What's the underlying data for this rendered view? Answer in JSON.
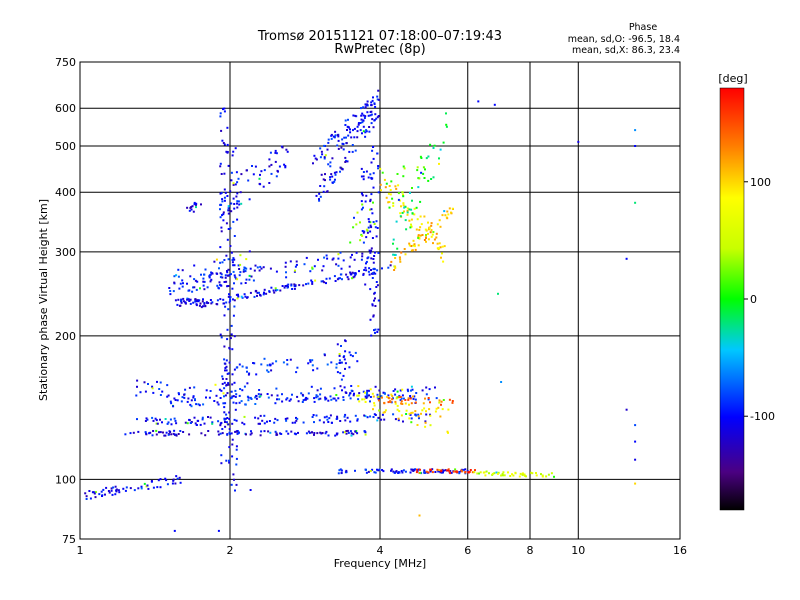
{
  "chart_data": {
    "type": "scatter",
    "title": "Tromsø 20151121 07:18:00–07:19:43",
    "subtitle": "RwPretec (8p)",
    "xlabel": "Frequency [MHz]",
    "ylabel": "Stationary phase Virtual Height [km]",
    "x_scale": "log",
    "y_scale": "log",
    "xlim": [
      1,
      16
    ],
    "ylim": [
      75,
      750
    ],
    "x_ticks": [
      1,
      2,
      4,
      6,
      8,
      10,
      16
    ],
    "x_tick_labels": [
      "1",
      "2",
      "4",
      "6",
      "8",
      "10",
      "16"
    ],
    "x_grid": [
      2,
      4,
      6,
      8,
      10
    ],
    "y_ticks": [
      75,
      100,
      200,
      300,
      400,
      500,
      600,
      750
    ],
    "y_tick_labels": [
      "75",
      "100",
      "200",
      "300",
      "400",
      "500",
      "600",
      "750"
    ],
    "y_grid": [
      100,
      200,
      300,
      400,
      500,
      600
    ],
    "grid": true,
    "colorbar": {
      "label": "[deg]",
      "range": [
        -180,
        180
      ],
      "ticks": [
        100,
        0,
        -100
      ],
      "tick_labels": [
        "100",
        "0",
        "-100"
      ]
    },
    "stats": {
      "heading": "Phase",
      "o_line": "mean, sd,O: -96.5, 18.4",
      "x_line": "mean, sd,X: 86.3, 23.4"
    },
    "series": [
      {
        "traces": [
          {
            "f": [
              1.55,
              1.8
            ],
            "h": [
              236,
              234
            ],
            "p": -110,
            "n": 45,
            "jh": 0.02
          },
          {
            "f": [
              1.8,
              4.2
            ],
            "h": [
              234,
              278
            ],
            "p": -105,
            "n": 120,
            "jh": 0.015
          },
          {
            "f": [
              4.2,
              5.6
            ],
            "h": [
              278,
              370
            ],
            "p": 110,
            "n": 55,
            "jh": 0.03
          },
          {
            "f": [
              1.5,
              3.9
            ],
            "h": [
              252,
              295
            ],
            "p": -100,
            "n": 110,
            "jh": 0.04
          },
          {
            "f": [
              1.55,
              2.2
            ],
            "h": [
              265,
              285
            ],
            "p": -95,
            "n": 45,
            "jh": 0.06
          },
          {
            "f": [
              3.0,
              4.0
            ],
            "h": [
              400,
              620
            ],
            "p": -105,
            "n": 90,
            "jh": 0.06
          },
          {
            "f": [
              2.9,
              3.8
            ],
            "h": [
              460,
              600
            ],
            "p": -100,
            "n": 60,
            "jh": 0.04
          },
          {
            "f": [
              4.0,
              5.4
            ],
            "h": [
              420,
              300
            ],
            "p": 100,
            "n": 70,
            "jh": 0.07
          },
          {
            "f": [
              3.5,
              5.0
            ],
            "h": [
              330,
              470
            ],
            "p": 20,
            "n": 40,
            "jh": 0.08
          },
          {
            "f": [
              4.2,
              5.5
            ],
            "h": [
              300,
              560
            ],
            "p": -20,
            "n": 40,
            "jh": 0.1
          },
          {
            "f": [
              1.9,
              2.6
            ],
            "h": [
              380,
              470
            ],
            "p": -105,
            "n": 60,
            "jh": 0.08
          },
          {
            "f": [
              1.65,
              1.75
            ],
            "h": [
              365,
              380
            ],
            "p": -110,
            "n": 14,
            "jh": 0.02
          },
          {
            "f": [
              1.3,
              5.0
            ],
            "h": [
              132,
              135
            ],
            "p": -100,
            "n": 130,
            "jh": 0.02
          },
          {
            "f": [
              1.5,
              5.0
            ],
            "h": [
              145,
              152
            ],
            "p": -95,
            "n": 120,
            "jh": 0.025
          },
          {
            "f": [
              1.3,
              5.4
            ],
            "h": [
              155,
              150
            ],
            "p": -100,
            "n": 100,
            "jh": 0.04
          },
          {
            "f": [
              1.2,
              3.8
            ],
            "h": [
              125,
              125
            ],
            "p": -110,
            "n": 110,
            "jh": 0.012
          },
          {
            "f": [
              1.9,
              3.6
            ],
            "h": [
              170,
              178
            ],
            "p": -95,
            "n": 60,
            "jh": 0.04
          },
          {
            "f": [
              3.6,
              5.5
            ],
            "h": [
              150,
              132
            ],
            "p": 95,
            "n": 55,
            "jh": 0.06
          },
          {
            "f": [
              4.0,
              5.6
            ],
            "h": [
              147,
              146
            ],
            "p": 140,
            "n": 35,
            "jh": 0.02
          },
          {
            "f": [
              1.0,
              1.6
            ],
            "h": [
              92,
              100
            ],
            "p": -105,
            "n": 60,
            "jh": 0.02
          },
          {
            "f": [
              3.3,
              6.0
            ],
            "h": [
              104,
              104
            ],
            "p": -100,
            "n": 90,
            "jh": 0.01
          },
          {
            "f": [
              4.7,
              6.2
            ],
            "h": [
              104,
              104
            ],
            "p": 160,
            "n": 35,
            "jh": 0.01
          },
          {
            "f": [
              6.2,
              9.0
            ],
            "h": [
              103,
              102
            ],
            "p": 60,
            "n": 45,
            "jh": 0.01
          }
        ]
      },
      {
        "vertical": [
          {
            "f": 1.95,
            "h": [
              105,
              600
            ],
            "p": -105,
            "n": 90
          },
          {
            "f": 2.03,
            "h": [
              90,
              500
            ],
            "p": -100,
            "n": 60
          },
          {
            "f": 3.9,
            "h": [
              200,
              650
            ],
            "p": -105,
            "n": 70
          },
          {
            "f": 3.75,
            "h": [
              250,
              450
            ],
            "p": -100,
            "n": 35
          },
          {
            "f": 3.35,
            "h": [
              155,
              200
            ],
            "p": -100,
            "n": 15
          }
        ]
      },
      {
        "isolated": [
          [
            6.8,
            610,
            -100
          ],
          [
            6.3,
            620,
            -100
          ],
          [
            13,
            540,
            -60
          ],
          [
            13,
            500,
            -100
          ],
          [
            13,
            380,
            -20
          ],
          [
            10,
            510,
            -110
          ],
          [
            12.5,
            290,
            -100
          ],
          [
            6.9,
            245,
            -20
          ],
          [
            13,
            110,
            -110
          ],
          [
            13,
            120,
            -100
          ],
          [
            13,
            130,
            -80
          ],
          [
            13,
            98,
            100
          ],
          [
            12.5,
            140,
            -120
          ],
          [
            7.0,
            160,
            -60
          ],
          [
            4.8,
            84,
            110
          ],
          [
            1.55,
            78,
            -100
          ],
          [
            1.9,
            78,
            -100
          ],
          [
            2.2,
            95,
            -105
          ]
        ]
      }
    ]
  }
}
